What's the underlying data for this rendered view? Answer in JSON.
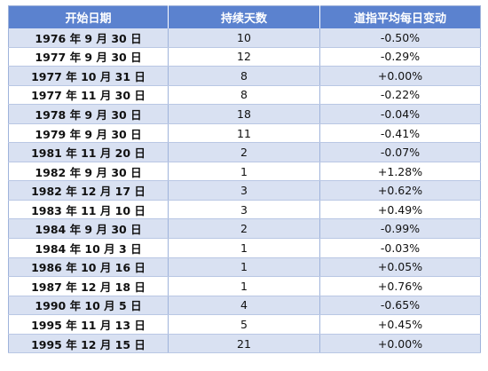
{
  "table": {
    "headers": [
      "开始日期",
      "持续天数",
      "道指平均每日变动"
    ],
    "rows": [
      {
        "date": "1976 年 9 月 30 日",
        "days": "10",
        "change": "-0.50%"
      },
      {
        "date": "1977 年 9 月 30 日",
        "days": "12",
        "change": "-0.29%"
      },
      {
        "date": "1977 年 10 月 31 日",
        "days": "8",
        "change": "+0.00%"
      },
      {
        "date": "1977 年 11 月 30 日",
        "days": "8",
        "change": "-0.22%"
      },
      {
        "date": "1978 年 9 月 30 日",
        "days": "18",
        "change": "-0.04%"
      },
      {
        "date": "1979 年 9 月 30 日",
        "days": "11",
        "change": "-0.41%"
      },
      {
        "date": "1981 年 11 月 20 日",
        "days": "2",
        "change": "-0.07%"
      },
      {
        "date": "1982 年 9 月 30 日",
        "days": "1",
        "change": "+1.28%"
      },
      {
        "date": "1982 年 12 月 17 日",
        "days": "3",
        "change": "+0.62%"
      },
      {
        "date": "1983 年 11 月 10 日",
        "days": "3",
        "change": "+0.49%"
      },
      {
        "date": "1984 年 9 月 30 日",
        "days": "2",
        "change": "-0.99%"
      },
      {
        "date": "1984 年 10 月 3 日",
        "days": "1",
        "change": "-0.03%"
      },
      {
        "date": "1986 年 10 月 16 日",
        "days": "1",
        "change": "+0.05%"
      },
      {
        "date": "1987 年 12 月 18 日",
        "days": "1",
        "change": "+0.76%"
      },
      {
        "date": "1990 年 10 月 5 日",
        "days": "4",
        "change": "-0.65%"
      },
      {
        "date": "1995 年 11 月 13 日",
        "days": "5",
        "change": "+0.45%"
      },
      {
        "date": "1995 年 12 月 15 日",
        "days": "21",
        "change": "+0.00%"
      }
    ]
  },
  "colors": {
    "header_bg": "#5b82cf",
    "header_text": "#ffffff",
    "stripe": "#d9e1f2",
    "row_bg": "#ffffff"
  }
}
